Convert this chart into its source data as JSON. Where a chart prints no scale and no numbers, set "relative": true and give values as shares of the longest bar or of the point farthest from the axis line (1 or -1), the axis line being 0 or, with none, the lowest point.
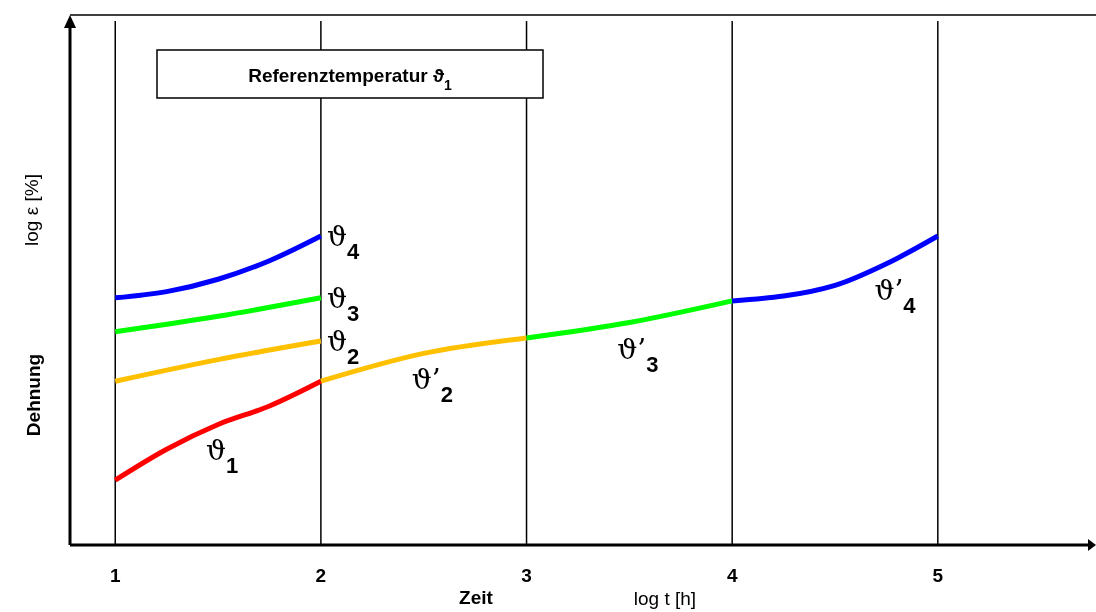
{
  "chart_data": {
    "type": "line",
    "relative": true,
    "xlabel": "Zeit",
    "ylabel": "Dehnung",
    "annotations": [
      "Referenztemperatur ϑ$_{1}$",
      "log t [h]",
      "log ε [%]"
    ],
    "xlim": [
      0.78,
      5.74
    ],
    "xticks": [
      1,
      2,
      3,
      4,
      5
    ],
    "grid": "x",
    "marker": "none",
    "line_style": "solid",
    "series": [
      {
        "name": "ϑ$_{1}$",
        "color": "#ff0000",
        "x": [
          1,
          1.25,
          1.5,
          1.75,
          2
        ],
        "values": [
          0.21,
          0.31,
          0.39,
          0.45,
          0.53
        ]
      },
      {
        "name": "ϑ$_{2}$",
        "color": "#ffc000",
        "x": [
          1,
          1.5,
          2
        ],
        "values": [
          0.53,
          0.6,
          0.66
        ]
      },
      {
        "name": "ϑ$_{3}$",
        "color": "#00ff00",
        "x": [
          1,
          1.5,
          2
        ],
        "values": [
          0.69,
          0.74,
          0.8
        ]
      },
      {
        "name": "ϑ$_{4}$",
        "color": "#0000ff",
        "x": [
          1,
          1.25,
          1.5,
          1.75,
          2
        ],
        "values": [
          0.8,
          0.82,
          0.86,
          0.92,
          1
        ]
      },
      {
        "name": "ϑ’$_{2}$",
        "color": "#ffc000",
        "x": [
          2,
          2.5,
          3
        ],
        "values": [
          0.53,
          0.62,
          0.67
        ]
      },
      {
        "name": "ϑ’$_{3}$",
        "color": "#00ff00",
        "x": [
          3,
          3.5,
          4
        ],
        "values": [
          0.67,
          0.72,
          0.79
        ]
      },
      {
        "name": "ϑ’$_{4}$",
        "color": "#0000ff",
        "x": [
          4,
          4.5,
          4.75,
          5
        ],
        "values": [
          0.79,
          0.84,
          0.91,
          1
        ]
      }
    ]
  }
}
